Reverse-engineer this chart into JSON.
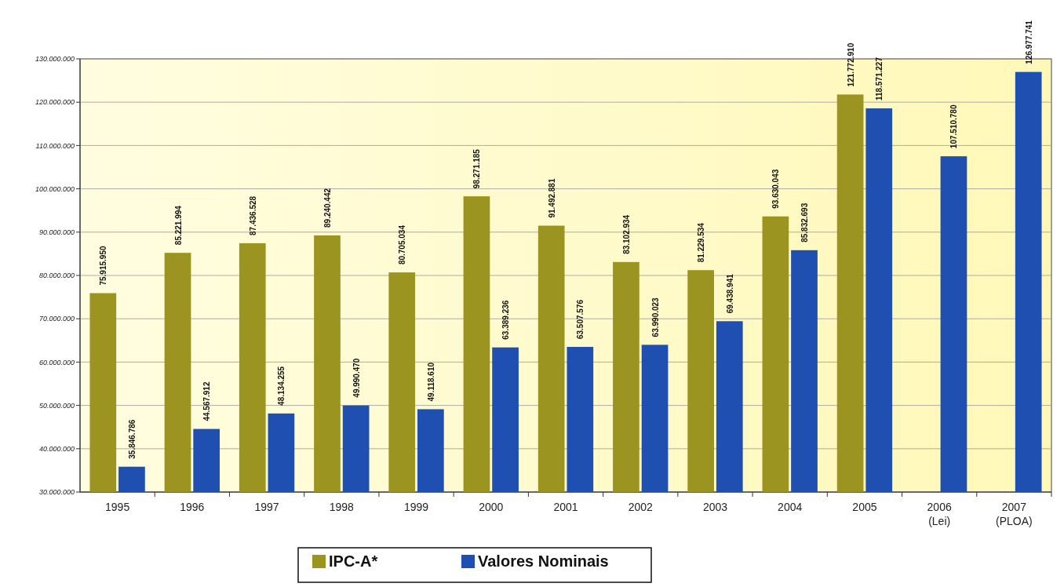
{
  "chart_data": {
    "type": "bar",
    "categories": [
      "1995",
      "1996",
      "1997",
      "1998",
      "1999",
      "2000",
      "2001",
      "2002",
      "2003",
      "2004",
      "2005",
      "2006 (Lei)",
      "2007 (PLOA)"
    ],
    "series": [
      {
        "name": "IPC-A*",
        "color": "#9c9420",
        "values": [
          75915950,
          85221994,
          87436528,
          89240442,
          80705034,
          98271185,
          91492881,
          83102934,
          81229534,
          93630043,
          121772910,
          null,
          null
        ],
        "value_labels": [
          "75.915.950",
          "85.221.994",
          "87.436.528",
          "89.240.442",
          "80.705.034",
          "98.271.185",
          "91.492.881",
          "83.102.934",
          "81.229.534",
          "93.630.043",
          "121.772.910",
          null,
          null
        ]
      },
      {
        "name": "Valores Nominais",
        "color": "#1f4fb0",
        "values": [
          35846786,
          44567912,
          48134255,
          49990470,
          49118610,
          63389236,
          63507576,
          63990023,
          69438941,
          85832693,
          118571227,
          107510780,
          126977741
        ],
        "value_labels": [
          "35.846.786",
          "44.567.912",
          "48.134.255",
          "49.990.470",
          "49.118.610",
          "63.389.236",
          "63.507.576",
          "63.990.023",
          "69.438.941",
          "85.832.693",
          "118.571.227",
          "107.510.780",
          "126.977.741"
        ]
      }
    ],
    "ylim": [
      30000000,
      130000000
    ],
    "yticks": [
      {
        "value": 30000000,
        "label": "30.000.000"
      },
      {
        "value": 40000000,
        "label": "40.000.000"
      },
      {
        "value": 50000000,
        "label": "50.000.000"
      },
      {
        "value": 60000000,
        "label": "60.000.000"
      },
      {
        "value": 70000000,
        "label": "70.000.000"
      },
      {
        "value": 80000000,
        "label": "80.000.000"
      },
      {
        "value": 90000000,
        "label": "90.000.000"
      },
      {
        "value": 100000000,
        "label": "100.000.000"
      },
      {
        "value": 110000000,
        "label": "110.000.000"
      },
      {
        "value": 120000000,
        "label": "120.000.000"
      },
      {
        "value": 130000000,
        "label": "130.000.000"
      }
    ],
    "grid": "y",
    "legend": "bottom"
  }
}
